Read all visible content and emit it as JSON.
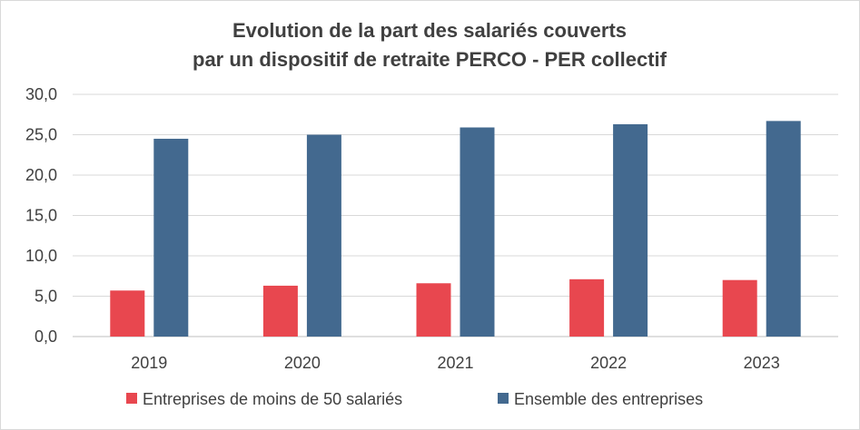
{
  "chart_data": {
    "type": "bar",
    "title_lines": [
      "Evolution de la part des salariés couverts",
      "par un dispositif de retraite PERCO - PER collectif"
    ],
    "xlabel": "",
    "ylabel": "",
    "categories": [
      "2019",
      "2020",
      "2021",
      "2022",
      "2023"
    ],
    "series": [
      {
        "name": "Entreprises de moins de 50 salariés",
        "color": "#e8474f",
        "values": [
          5.7,
          6.3,
          6.6,
          7.1,
          7.0
        ]
      },
      {
        "name": "Ensemble des entreprises",
        "color": "#43698f",
        "values": [
          24.5,
          25.0,
          25.9,
          26.3,
          26.7
        ]
      }
    ],
    "ylim": [
      0,
      30
    ],
    "yticks": [
      "0,0",
      "5,0",
      "10,0",
      "15,0",
      "20,0",
      "25,0",
      "30,0"
    ],
    "grid": true,
    "legend_position": "bottom"
  }
}
